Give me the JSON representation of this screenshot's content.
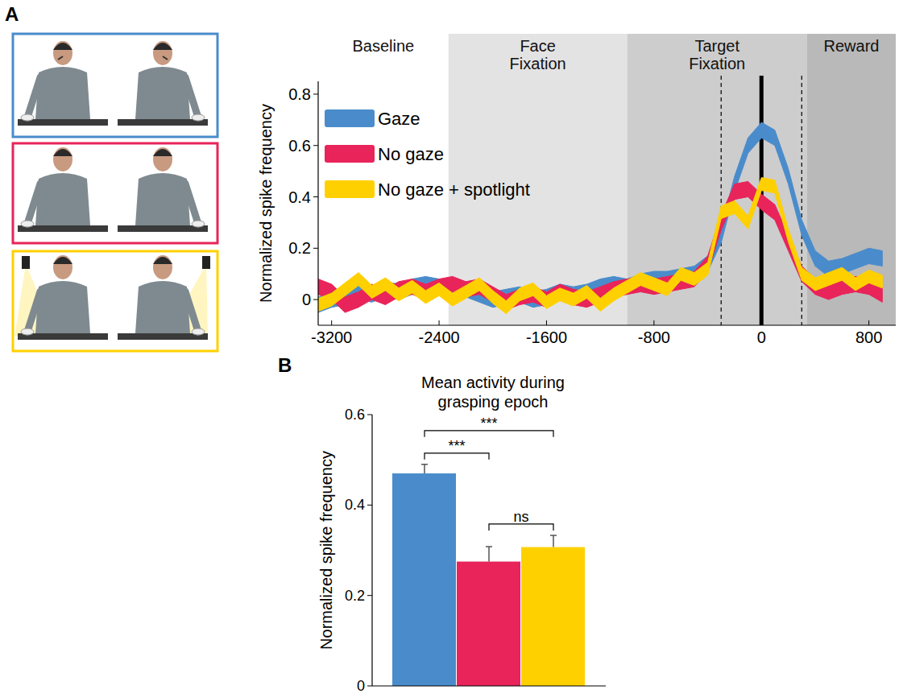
{
  "chart_data": [
    {
      "type": "line",
      "panel": "A",
      "y_label": "Normalized spike frequency",
      "x": [
        -3300,
        -3200,
        -3100,
        -3000,
        -2900,
        -2800,
        -2700,
        -2600,
        -2500,
        -2400,
        -2300,
        -2200,
        -2100,
        -2000,
        -1900,
        -1800,
        -1700,
        -1600,
        -1500,
        -1400,
        -1300,
        -1200,
        -1100,
        -1000,
        -900,
        -800,
        -700,
        -600,
        -500,
        -400,
        -300,
        -200,
        -100,
        0,
        100,
        200,
        300,
        400,
        500,
        600,
        700,
        800,
        900
      ],
      "series": [
        {
          "name": "Gaze",
          "color": "#4a8ccb",
          "error": 0.03,
          "values": [
            -0.02,
            0.0,
            0.01,
            0.03,
            0.02,
            0.04,
            0.03,
            0.05,
            0.06,
            0.05,
            0.03,
            0.04,
            0.02,
            0.0,
            0.01,
            0.02,
            0.0,
            0.01,
            0.03,
            0.02,
            0.03,
            0.05,
            0.06,
            0.05,
            0.07,
            0.08,
            0.08,
            0.09,
            0.1,
            0.14,
            0.25,
            0.45,
            0.6,
            0.66,
            0.63,
            0.48,
            0.28,
            0.16,
            0.12,
            0.13,
            0.15,
            0.17,
            0.16
          ]
        },
        {
          "name": "No gaze",
          "color": "#e8245a",
          "error": 0.03,
          "values": [
            0.05,
            0.03,
            -0.02,
            0.0,
            0.03,
            0.01,
            0.04,
            0.05,
            0.03,
            0.05,
            0.06,
            0.04,
            0.05,
            0.02,
            -0.01,
            0.01,
            0.02,
            0.0,
            0.03,
            0.01,
            0.0,
            0.02,
            0.04,
            0.05,
            0.06,
            0.05,
            0.06,
            0.07,
            0.08,
            0.14,
            0.3,
            0.42,
            0.43,
            0.38,
            0.34,
            0.22,
            0.1,
            0.05,
            0.03,
            0.05,
            0.06,
            0.05,
            0.02
          ]
        },
        {
          "name": "No gaze + spotlight",
          "color": "#ffd000",
          "error": 0.025,
          "values": [
            -0.02,
            0.0,
            0.04,
            0.08,
            0.03,
            0.06,
            0.02,
            0.05,
            0.01,
            0.04,
            0.0,
            0.03,
            0.06,
            0.01,
            -0.03,
            0.02,
            0.04,
            -0.01,
            0.02,
            0.0,
            0.03,
            -0.02,
            0.02,
            0.05,
            0.08,
            0.06,
            0.04,
            0.1,
            0.08,
            0.12,
            0.34,
            0.36,
            0.3,
            0.45,
            0.44,
            0.25,
            0.1,
            0.06,
            0.08,
            0.1,
            0.06,
            0.09,
            0.07
          ]
        }
      ],
      "epochs": [
        {
          "label": "Baseline",
          "start": -3300,
          "end": -2330,
          "color": "#ffffff"
        },
        {
          "label": "Face Fixation",
          "start": -2330,
          "end": -1000,
          "color": "#e3e3e3"
        },
        {
          "label": "Target Fixation",
          "start": -1000,
          "end": 340,
          "color": "#cdcdcd"
        },
        {
          "label": "Reward",
          "start": 340,
          "end": 1000,
          "color": "#b9b9b9"
        }
      ],
      "markers": [
        {
          "x": -300,
          "line_style": "dashed"
        },
        {
          "x": 0,
          "line_style": "solid"
        },
        {
          "x": 300,
          "line_style": "dashed"
        }
      ],
      "xlim": [
        -3300,
        1000
      ],
      "xticks": [
        -3200,
        -2400,
        -1600,
        -800,
        0,
        800
      ],
      "ylim": [
        -0.1,
        0.85
      ],
      "yticks": [
        0,
        0.2,
        0.4,
        0.6,
        0.8
      ],
      "legend": "upper left",
      "grid": false
    },
    {
      "type": "bar",
      "panel": "B",
      "title": "Mean activity during grasping epoch",
      "y_label": "Normalized spike frequency",
      "categories": [
        null,
        null,
        null
      ],
      "values": [
        0.47,
        0.275,
        0.307
      ],
      "errors": [
        0.02,
        0.033,
        0.026
      ],
      "colors": [
        "#4a8ccb",
        "#e8245a",
        "#ffd000"
      ],
      "annotations": [
        {
          "text": "***",
          "from": 0,
          "to": 1
        },
        {
          "text": "***",
          "from": 0,
          "to": 2
        },
        {
          "text": "ns",
          "from": 1,
          "to": 2
        }
      ],
      "ylim": [
        0,
        0.6
      ],
      "yticks": [
        0,
        0.2,
        0.4,
        0.6
      ],
      "tick_labels": "y",
      "grid": false
    }
  ]
}
